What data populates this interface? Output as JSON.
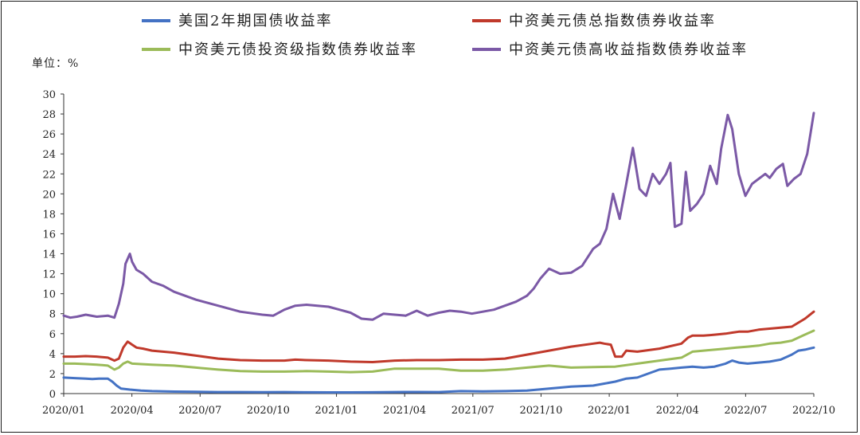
{
  "chart_data": {
    "type": "line",
    "title": "",
    "unit_label": "单位：%",
    "xlabel": "",
    "ylabel": "",
    "ylim": [
      0,
      30
    ],
    "yticks": [
      0,
      2,
      4,
      6,
      8,
      10,
      12,
      14,
      16,
      18,
      20,
      22,
      24,
      26,
      28,
      30
    ],
    "xticks": [
      "2020/01",
      "2020/04",
      "2020/07",
      "2020/10",
      "2021/01",
      "2021/04",
      "2021/07",
      "2021/10",
      "2022/01",
      "2022/04",
      "2022/07",
      "2022/10"
    ],
    "xrange_months": [
      0,
      34
    ],
    "grid": false,
    "legend_position": "top",
    "series": [
      {
        "name": "美国2年期国债收益率",
        "color": "#4472C4",
        "points": [
          [
            0,
            1.6
          ],
          [
            0.5,
            1.55
          ],
          [
            1,
            1.5
          ],
          [
            1.3,
            1.45
          ],
          [
            1.6,
            1.5
          ],
          [
            2,
            1.5
          ],
          [
            2.2,
            1.2
          ],
          [
            2.4,
            0.8
          ],
          [
            2.6,
            0.5
          ],
          [
            3,
            0.4
          ],
          [
            3.5,
            0.3
          ],
          [
            4,
            0.25
          ],
          [
            5,
            0.2
          ],
          [
            6,
            0.18
          ],
          [
            7,
            0.15
          ],
          [
            8,
            0.15
          ],
          [
            9,
            0.14
          ],
          [
            10,
            0.15
          ],
          [
            11,
            0.13
          ],
          [
            12,
            0.12
          ],
          [
            13,
            0.12
          ],
          [
            14,
            0.13
          ],
          [
            15,
            0.15
          ],
          [
            16,
            0.16
          ],
          [
            17,
            0.15
          ],
          [
            18,
            0.25
          ],
          [
            19,
            0.22
          ],
          [
            20,
            0.25
          ],
          [
            21,
            0.3
          ],
          [
            21.5,
            0.4
          ],
          [
            22,
            0.5
          ],
          [
            22.5,
            0.6
          ],
          [
            23,
            0.7
          ],
          [
            24,
            0.8
          ],
          [
            24.5,
            1.0
          ],
          [
            25,
            1.2
          ],
          [
            25.5,
            1.5
          ],
          [
            26,
            1.6
          ],
          [
            26.5,
            2.0
          ],
          [
            27,
            2.4
          ],
          [
            27.5,
            2.5
          ],
          [
            28,
            2.6
          ],
          [
            28.5,
            2.7
          ],
          [
            29,
            2.6
          ],
          [
            29.5,
            2.7
          ],
          [
            30,
            3.0
          ],
          [
            30.3,
            3.3
          ],
          [
            30.6,
            3.1
          ],
          [
            31,
            3.0
          ],
          [
            31.5,
            3.1
          ],
          [
            32,
            3.2
          ],
          [
            32.5,
            3.4
          ],
          [
            33,
            3.9
          ],
          [
            33.3,
            4.3
          ],
          [
            33.6,
            4.4
          ],
          [
            34,
            4.6
          ]
        ]
      },
      {
        "name": "中资美元债总指数债券收益率",
        "color": "#C0392B",
        "points": [
          [
            0,
            3.7
          ],
          [
            0.5,
            3.7
          ],
          [
            1,
            3.75
          ],
          [
            1.5,
            3.7
          ],
          [
            2,
            3.6
          ],
          [
            2.3,
            3.3
          ],
          [
            2.5,
            3.5
          ],
          [
            2.7,
            4.6
          ],
          [
            2.9,
            5.2
          ],
          [
            3.1,
            4.9
          ],
          [
            3.3,
            4.6
          ],
          [
            3.6,
            4.5
          ],
          [
            4,
            4.3
          ],
          [
            5,
            4.1
          ],
          [
            6,
            3.8
          ],
          [
            7,
            3.5
          ],
          [
            8,
            3.35
          ],
          [
            9,
            3.3
          ],
          [
            10,
            3.3
          ],
          [
            10.5,
            3.4
          ],
          [
            11,
            3.35
          ],
          [
            12,
            3.3
          ],
          [
            13,
            3.2
          ],
          [
            14,
            3.15
          ],
          [
            15,
            3.3
          ],
          [
            16,
            3.35
          ],
          [
            17,
            3.35
          ],
          [
            18,
            3.4
          ],
          [
            19,
            3.4
          ],
          [
            20,
            3.5
          ],
          [
            21,
            3.9
          ],
          [
            22,
            4.3
          ],
          [
            23,
            4.7
          ],
          [
            24,
            5.0
          ],
          [
            24.3,
            5.1
          ],
          [
            24.5,
            5.0
          ],
          [
            24.8,
            4.9
          ],
          [
            25,
            3.7
          ],
          [
            25.3,
            3.7
          ],
          [
            25.5,
            4.3
          ],
          [
            26,
            4.2
          ],
          [
            27,
            4.5
          ],
          [
            28,
            5.0
          ],
          [
            28.3,
            5.6
          ],
          [
            28.5,
            5.8
          ],
          [
            29,
            5.8
          ],
          [
            29.5,
            5.9
          ],
          [
            30,
            6.0
          ],
          [
            30.3,
            6.1
          ],
          [
            30.6,
            6.2
          ],
          [
            31,
            6.2
          ],
          [
            31.5,
            6.4
          ],
          [
            32,
            6.5
          ],
          [
            32.5,
            6.6
          ],
          [
            33,
            6.7
          ],
          [
            33.3,
            7.1
          ],
          [
            33.6,
            7.5
          ],
          [
            34,
            8.2
          ]
        ]
      },
      {
        "name": "中资美元债投资级指数债券收益率",
        "color": "#9BBB59",
        "points": [
          [
            0,
            3.0
          ],
          [
            0.5,
            3.0
          ],
          [
            1,
            2.95
          ],
          [
            1.5,
            2.9
          ],
          [
            2,
            2.8
          ],
          [
            2.3,
            2.4
          ],
          [
            2.5,
            2.6
          ],
          [
            2.7,
            3.0
          ],
          [
            2.9,
            3.2
          ],
          [
            3.1,
            3.0
          ],
          [
            3.5,
            2.95
          ],
          [
            4,
            2.9
          ],
          [
            5,
            2.8
          ],
          [
            6,
            2.6
          ],
          [
            7,
            2.4
          ],
          [
            8,
            2.25
          ],
          [
            9,
            2.2
          ],
          [
            10,
            2.2
          ],
          [
            11,
            2.25
          ],
          [
            12,
            2.2
          ],
          [
            13,
            2.15
          ],
          [
            14,
            2.2
          ],
          [
            15,
            2.5
          ],
          [
            16,
            2.5
          ],
          [
            17,
            2.5
          ],
          [
            18,
            2.3
          ],
          [
            19,
            2.3
          ],
          [
            20,
            2.4
          ],
          [
            21,
            2.6
          ],
          [
            22,
            2.8
          ],
          [
            23,
            2.6
          ],
          [
            24,
            2.65
          ],
          [
            25,
            2.7
          ],
          [
            26,
            3.0
          ],
          [
            27,
            3.3
          ],
          [
            28,
            3.6
          ],
          [
            28.5,
            4.2
          ],
          [
            29,
            4.3
          ],
          [
            29.5,
            4.4
          ],
          [
            30,
            4.5
          ],
          [
            30.5,
            4.6
          ],
          [
            31,
            4.7
          ],
          [
            31.5,
            4.8
          ],
          [
            32,
            5.0
          ],
          [
            32.5,
            5.1
          ],
          [
            33,
            5.3
          ],
          [
            33.5,
            5.8
          ],
          [
            34,
            6.3
          ]
        ]
      },
      {
        "name": "中资美元债高收益指数债券收益率",
        "color": "#7B59A6",
        "points": [
          [
            0,
            7.8
          ],
          [
            0.3,
            7.6
          ],
          [
            0.6,
            7.7
          ],
          [
            1,
            7.9
          ],
          [
            1.5,
            7.7
          ],
          [
            2,
            7.8
          ],
          [
            2.3,
            7.6
          ],
          [
            2.5,
            9.0
          ],
          [
            2.7,
            11.0
          ],
          [
            2.8,
            13.0
          ],
          [
            3.0,
            14.0
          ],
          [
            3.1,
            13.2
          ],
          [
            3.3,
            12.4
          ],
          [
            3.6,
            12.0
          ],
          [
            4,
            11.2
          ],
          [
            4.5,
            10.8
          ],
          [
            5,
            10.2
          ],
          [
            6,
            9.4
          ],
          [
            7,
            8.8
          ],
          [
            8,
            8.2
          ],
          [
            9,
            7.9
          ],
          [
            9.5,
            7.8
          ],
          [
            10,
            8.4
          ],
          [
            10.5,
            8.8
          ],
          [
            11,
            8.9
          ],
          [
            12,
            8.7
          ],
          [
            12.5,
            8.4
          ],
          [
            13,
            8.1
          ],
          [
            13.5,
            7.5
          ],
          [
            14,
            7.4
          ],
          [
            14.5,
            8.0
          ],
          [
            15,
            7.9
          ],
          [
            15.5,
            7.8
          ],
          [
            16,
            8.3
          ],
          [
            16.5,
            7.8
          ],
          [
            17,
            8.1
          ],
          [
            17.5,
            8.3
          ],
          [
            18,
            8.2
          ],
          [
            18.5,
            8.0
          ],
          [
            19,
            8.2
          ],
          [
            19.5,
            8.4
          ],
          [
            20,
            8.8
          ],
          [
            20.5,
            9.2
          ],
          [
            21,
            9.8
          ],
          [
            21.3,
            10.5
          ],
          [
            21.6,
            11.5
          ],
          [
            22,
            12.5
          ],
          [
            22.5,
            12.0
          ],
          [
            23,
            12.1
          ],
          [
            23.5,
            12.8
          ],
          [
            24,
            14.5
          ],
          [
            24.3,
            15.0
          ],
          [
            24.6,
            16.5
          ],
          [
            24.9,
            20.0
          ],
          [
            25.2,
            17.5
          ],
          [
            25.5,
            21.0
          ],
          [
            25.8,
            24.6
          ],
          [
            26.1,
            20.5
          ],
          [
            26.4,
            19.8
          ],
          [
            26.7,
            22.0
          ],
          [
            27.0,
            21.0
          ],
          [
            27.3,
            22.0
          ],
          [
            27.5,
            23.1
          ],
          [
            27.7,
            16.7
          ],
          [
            28,
            17.0
          ],
          [
            28.2,
            22.2
          ],
          [
            28.4,
            18.3
          ],
          [
            28.7,
            19.0
          ],
          [
            29,
            20.0
          ],
          [
            29.3,
            22.8
          ],
          [
            29.6,
            21.0
          ],
          [
            29.8,
            24.5
          ],
          [
            30.0,
            26.8
          ],
          [
            30.1,
            27.9
          ],
          [
            30.3,
            26.5
          ],
          [
            30.6,
            22.0
          ],
          [
            30.9,
            19.8
          ],
          [
            31.2,
            21.0
          ],
          [
            31.5,
            21.5
          ],
          [
            31.8,
            22.0
          ],
          [
            32,
            21.6
          ],
          [
            32.3,
            22.5
          ],
          [
            32.6,
            23.0
          ],
          [
            32.8,
            20.8
          ],
          [
            33.1,
            21.5
          ],
          [
            33.4,
            22.0
          ],
          [
            33.7,
            24.0
          ],
          [
            34,
            28.1
          ]
        ]
      }
    ]
  }
}
